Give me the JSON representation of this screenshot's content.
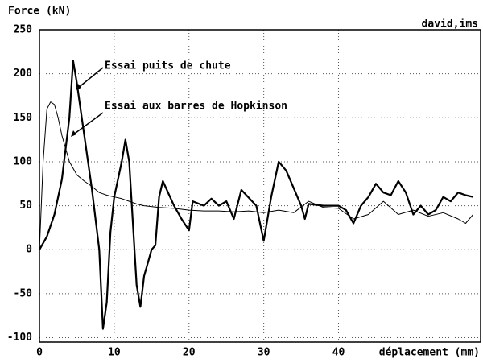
{
  "chart_data": {
    "type": "line",
    "y_label": "Force (kN)",
    "x_label": "déplacement (mm)",
    "credit": "david,ims",
    "annotations": [
      "Essai puits de chute",
      "Essai aux barres de Hopkinson"
    ],
    "xlim": [
      0,
      59
    ],
    "ylim": [
      -105,
      250
    ],
    "xticks": [
      0,
      10,
      20,
      30,
      40
    ],
    "yticks": [
      -100,
      -50,
      0,
      50,
      100,
      150,
      200,
      250
    ],
    "grid": true,
    "series": [
      {
        "name": "Essai puits de chute",
        "color": "#000000",
        "width": 2.2,
        "x": [
          0,
          1,
          2,
          3,
          4,
          4.5,
          5,
          6,
          7,
          8,
          8.5,
          9,
          9.5,
          10,
          11,
          11.5,
          12,
          12.5,
          13,
          13.5,
          14,
          15,
          15.5,
          16,
          16.5,
          18,
          19,
          20,
          20.5,
          22,
          23,
          24,
          25,
          26,
          27,
          29,
          29.5,
          30,
          31,
          32,
          33,
          34,
          35,
          35.5,
          36,
          38,
          40,
          41,
          42,
          43,
          44,
          45,
          46,
          47,
          48,
          49,
          50,
          51,
          52,
          53,
          54,
          55,
          56,
          57,
          58
        ],
        "values": [
          0,
          15,
          40,
          80,
          150,
          215,
          190,
          130,
          70,
          0,
          -90,
          -60,
          20,
          60,
          100,
          125,
          100,
          30,
          -40,
          -65,
          -30,
          0,
          5,
          60,
          78,
          50,
          35,
          22,
          55,
          50,
          58,
          50,
          55,
          35,
          68,
          50,
          30,
          10,
          60,
          100,
          90,
          70,
          50,
          35,
          52,
          50,
          50,
          45,
          30,
          50,
          60,
          75,
          65,
          62,
          78,
          65,
          40,
          50,
          40,
          45,
          60,
          55,
          65,
          62,
          60
        ]
      },
      {
        "name": "Essai aux barres de Hopkinson",
        "color": "#000000",
        "width": 1,
        "x": [
          0,
          0.5,
          1,
          1.5,
          2,
          2.5,
          3,
          4,
          5,
          6,
          7,
          8,
          9,
          10,
          11,
          12,
          13,
          14,
          16,
          18,
          20,
          22,
          24,
          26,
          28,
          30,
          32,
          34,
          36,
          38,
          40,
          42,
          44,
          46,
          48,
          50,
          52,
          54,
          56,
          57,
          58
        ],
        "values": [
          0,
          100,
          160,
          168,
          165,
          150,
          130,
          100,
          85,
          78,
          72,
          65,
          62,
          60,
          58,
          55,
          52,
          50,
          48,
          47,
          45,
          44,
          44,
          43,
          44,
          42,
          45,
          42,
          55,
          48,
          47,
          35,
          40,
          55,
          40,
          45,
          38,
          42,
          35,
          30,
          40
        ]
      }
    ]
  }
}
